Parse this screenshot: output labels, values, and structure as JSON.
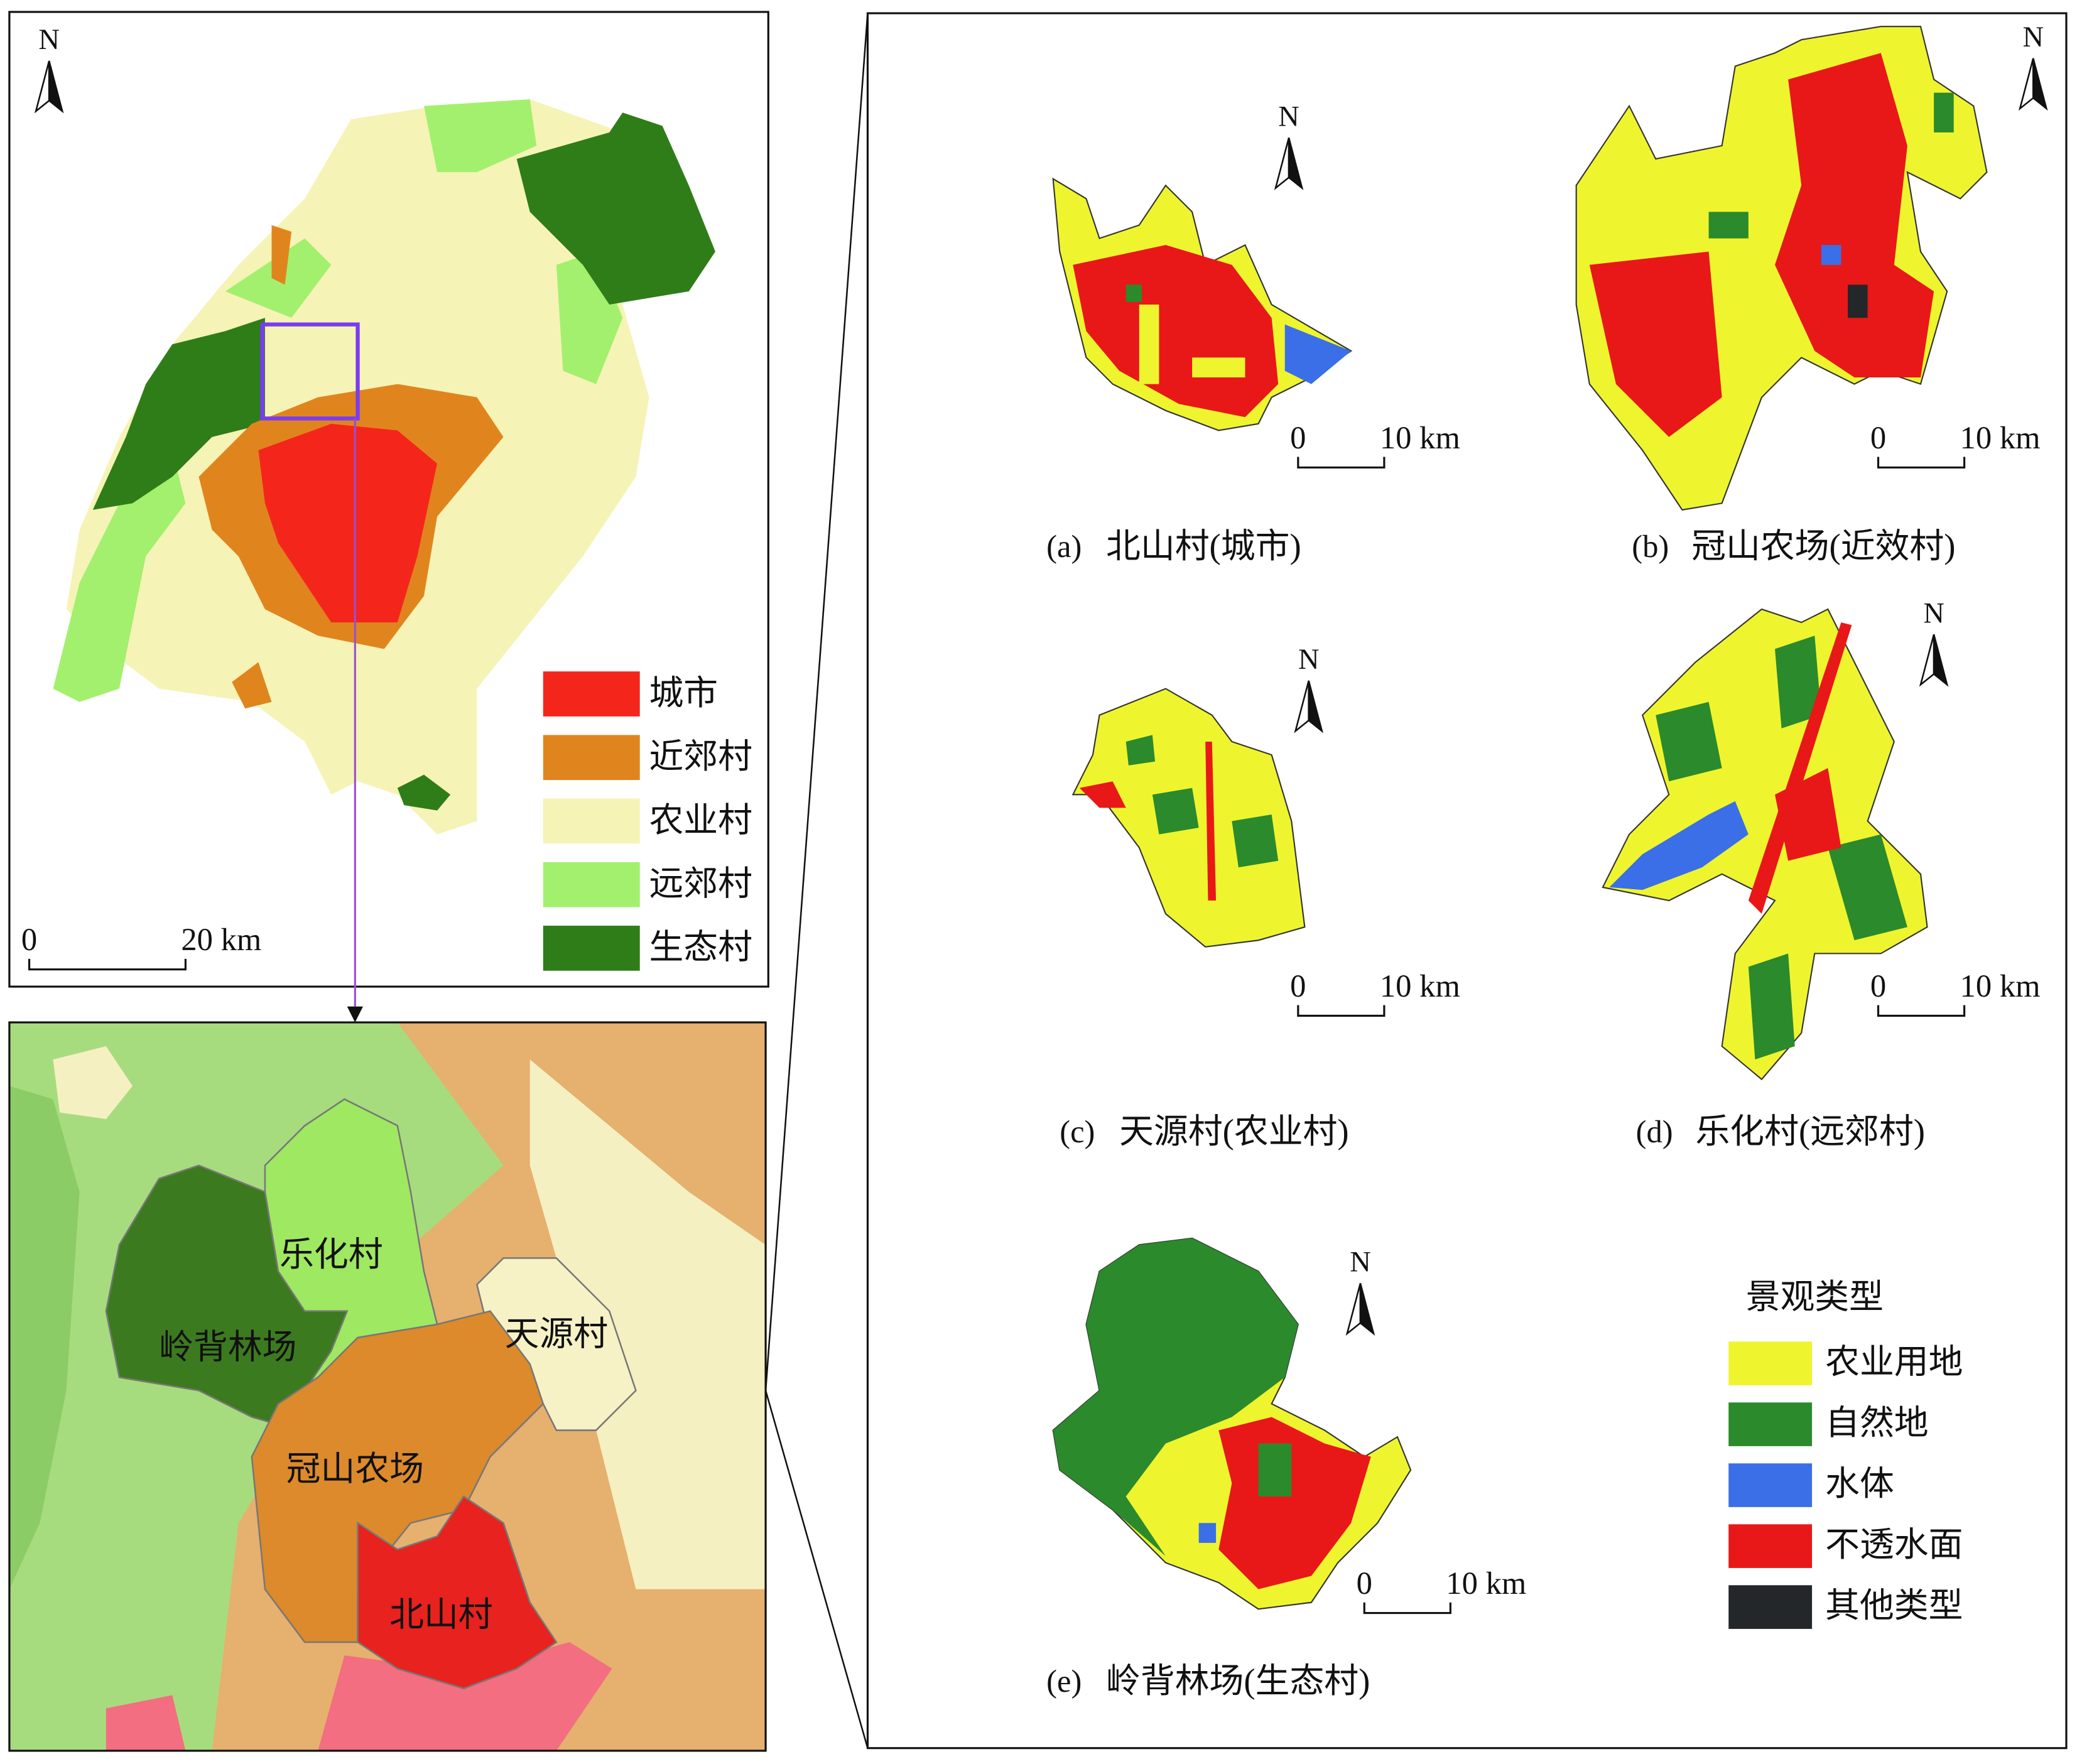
{
  "overview_map": {
    "north": "N",
    "legend": [
      {
        "label": "城市",
        "color": "#f4261c"
      },
      {
        "label": "近郊村",
        "color": "#e0851e"
      },
      {
        "label": "农业村",
        "color": "#f6f3b6"
      },
      {
        "label": "远郊村",
        "color": "#a3f06e"
      },
      {
        "label": "生态村",
        "color": "#2f7d18"
      }
    ],
    "scale_bar": [
      "0",
      "20 km"
    ]
  },
  "inset_map": {
    "labels": [
      "乐化村",
      "岭背林场",
      "天源村",
      "冠山农场",
      "北山村"
    ]
  },
  "panels": [
    {
      "tag": "(a)",
      "name": "北山村(城市)",
      "north": "N",
      "scale_bar": [
        "0",
        "10 km"
      ]
    },
    {
      "tag": "(b)",
      "name": "冠山农场(近效村)",
      "north": "N",
      "scale_bar": [
        "0",
        "10 km"
      ]
    },
    {
      "tag": "(c)",
      "name": "天源村(农业村)",
      "north": "N",
      "scale_bar": [
        "0",
        "10 km"
      ]
    },
    {
      "tag": "(d)",
      "name": "乐化村(远郊村)",
      "north": "N",
      "scale_bar": [
        "0",
        "10 km"
      ]
    },
    {
      "tag": "(e)",
      "name": "岭背林场(生态村)",
      "north": "N",
      "scale_bar": [
        "0",
        "10 km"
      ]
    }
  ],
  "landscape_legend": {
    "title": "景观类型",
    "items": [
      {
        "label": "农业用地",
        "color": "#eef52e"
      },
      {
        "label": "自然地",
        "color": "#2b8a2b"
      },
      {
        "label": "水体",
        "color": "#3a6fe8"
      },
      {
        "label": "不透水面",
        "color": "#e81818"
      },
      {
        "label": "其他类型",
        "color": "#23272a"
      }
    ]
  }
}
